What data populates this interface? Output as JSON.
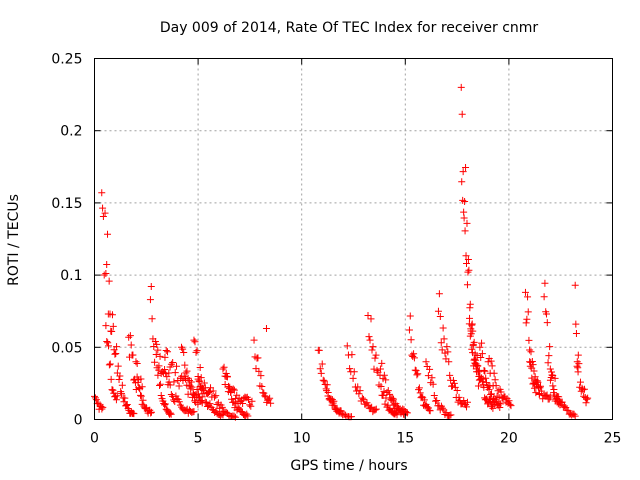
{
  "chart_data": {
    "type": "scatter",
    "title": "Day 009 of 2014, Rate Of TEC Index for receiver cnmr",
    "xlabel": "GPS time / hours",
    "ylabel": "ROTI / TECUs",
    "xlim": [
      0,
      25
    ],
    "ylim": [
      0,
      0.25
    ],
    "grid": true,
    "marker": "plus",
    "color": "#ff0000",
    "xticks": [
      {
        "value": 0,
        "label": "0"
      },
      {
        "value": 5,
        "label": "5"
      },
      {
        "value": 10,
        "label": "10"
      },
      {
        "value": 15,
        "label": "15"
      },
      {
        "value": 20,
        "label": "20"
      },
      {
        "value": 25,
        "label": "25"
      }
    ],
    "yticks": [
      {
        "value": 0,
        "label": "0"
      },
      {
        "value": 0.05,
        "label": "0.05"
      },
      {
        "value": 0.1,
        "label": "0.1"
      },
      {
        "value": 0.15,
        "label": "0.15"
      },
      {
        "value": 0.2,
        "label": "0.2"
      },
      {
        "value": 0.25,
        "label": "0.25"
      }
    ],
    "arcs": [
      {
        "start": 0.0,
        "end": 0.4,
        "peak": 0.016,
        "tail": 0.008,
        "n": 10
      },
      {
        "start": 0.35,
        "end": 1.9,
        "peak": 0.157,
        "tail": 0.004,
        "n": 40
      },
      {
        "start": 0.55,
        "end": 1.1,
        "peak": 0.065,
        "tail": 0.015,
        "n": 14
      },
      {
        "start": 1.65,
        "end": 2.75,
        "peak": 0.057,
        "tail": 0.005,
        "n": 28
      },
      {
        "start": 2.0,
        "end": 2.3,
        "peak": 0.04,
        "tail": 0.025,
        "n": 6
      },
      {
        "start": 2.7,
        "end": 3.7,
        "peak": 0.083,
        "tail": 0.004,
        "n": 26
      },
      {
        "start": 3.0,
        "end": 4.8,
        "peak": 0.052,
        "tail": 0.005,
        "n": 34
      },
      {
        "start": 3.4,
        "end": 5.2,
        "peak": 0.043,
        "tail": 0.02,
        "n": 30
      },
      {
        "start": 4.2,
        "end": 5.2,
        "peak": 0.05,
        "tail": 0.012,
        "n": 20
      },
      {
        "start": 4.8,
        "end": 5.55,
        "peak": 0.055,
        "tail": 0.02,
        "n": 16
      },
      {
        "start": 5.0,
        "end": 6.2,
        "peak": 0.028,
        "tail": 0.003,
        "n": 22
      },
      {
        "start": 5.6,
        "end": 6.8,
        "peak": 0.022,
        "tail": 0.002,
        "n": 20
      },
      {
        "start": 6.2,
        "end": 7.4,
        "peak": 0.035,
        "tail": 0.003,
        "n": 24
      },
      {
        "start": 6.3,
        "end": 7.6,
        "peak": 0.03,
        "tail": 0.012,
        "n": 24
      },
      {
        "start": 7.7,
        "end": 8.5,
        "peak": 0.055,
        "tail": 0.012,
        "n": 18
      },
      {
        "start": 8.3,
        "end": 8.35,
        "peak": 0.063,
        "tail": 0.063,
        "n": 1
      },
      {
        "start": 10.8,
        "end": 11.9,
        "peak": 0.048,
        "tail": 0.005,
        "n": 24
      },
      {
        "start": 11.2,
        "end": 12.4,
        "peak": 0.02,
        "tail": 0.002,
        "n": 18
      },
      {
        "start": 12.2,
        "end": 13.6,
        "peak": 0.051,
        "tail": 0.006,
        "n": 26
      },
      {
        "start": 13.2,
        "end": 14.6,
        "peak": 0.072,
        "tail": 0.004,
        "n": 30
      },
      {
        "start": 13.8,
        "end": 15.0,
        "peak": 0.035,
        "tail": 0.006,
        "n": 20
      },
      {
        "start": 14.3,
        "end": 15.1,
        "peak": 0.015,
        "tail": 0.004,
        "n": 14
      },
      {
        "start": 15.2,
        "end": 16.2,
        "peak": 0.062,
        "tail": 0.008,
        "n": 26
      },
      {
        "start": 16.0,
        "end": 17.2,
        "peak": 0.04,
        "tail": 0.003,
        "n": 22
      },
      {
        "start": 16.6,
        "end": 18.0,
        "peak": 0.075,
        "tail": 0.01,
        "n": 32
      },
      {
        "start": 17.7,
        "end": 18.6,
        "peak": 0.23,
        "tail": 0.03,
        "n": 40
      },
      {
        "start": 18.1,
        "end": 19.3,
        "peak": 0.07,
        "tail": 0.01,
        "n": 34
      },
      {
        "start": 18.6,
        "end": 19.6,
        "peak": 0.05,
        "tail": 0.01,
        "n": 26
      },
      {
        "start": 19.0,
        "end": 20.1,
        "peak": 0.04,
        "tail": 0.012,
        "n": 24
      },
      {
        "start": 20.8,
        "end": 21.5,
        "peak": 0.088,
        "tail": 0.02,
        "n": 22
      },
      {
        "start": 21.0,
        "end": 22.0,
        "peak": 0.04,
        "tail": 0.015,
        "n": 20
      },
      {
        "start": 21.7,
        "end": 22.5,
        "peak": 0.085,
        "tail": 0.01,
        "n": 22
      },
      {
        "start": 22.0,
        "end": 23.2,
        "peak": 0.035,
        "tail": 0.003,
        "n": 22
      },
      {
        "start": 23.2,
        "end": 23.35,
        "peak": 0.093,
        "tail": 0.04,
        "n": 6
      },
      {
        "start": 23.3,
        "end": 23.8,
        "peak": 0.04,
        "tail": 0.015,
        "n": 14
      }
    ]
  }
}
